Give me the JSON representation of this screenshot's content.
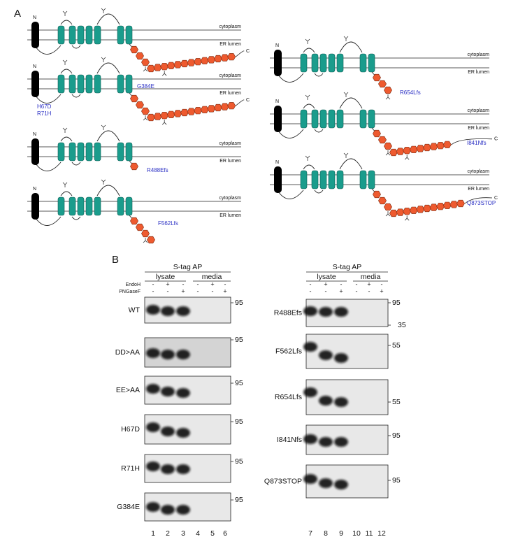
{
  "panel_a": {
    "label": "A",
    "diagrams": [
      {
        "n": "N",
        "cytoplasm": "cytoplasm",
        "er_lumen": "ER lumen",
        "c": "C"
      },
      {
        "n": "N",
        "cytoplasm": "cytoplasm",
        "er_lumen": "ER lumen",
        "c": "C",
        "mutations": [
          "G384E",
          "H67D",
          "R71H"
        ]
      },
      {
        "n": "N",
        "cytoplasm": "cytoplasm",
        "er_lumen": "ER lumen",
        "mutations": [
          "R488Efs"
        ]
      },
      {
        "n": "N",
        "cytoplasm": "cytoplasm",
        "er_lumen": "ER lumen",
        "mutations": [
          "F562Lfs"
        ]
      },
      {
        "n": "N",
        "cytoplasm": "cytoplasm",
        "er_lumen": "ER lumen",
        "mutations": [
          "R654Lfs"
        ]
      },
      {
        "n": "N",
        "cytoplasm": "cytoplasm",
        "er_lumen": "ER lumen",
        "c": "C",
        "mutations": [
          "I841Nfs"
        ]
      },
      {
        "n": "N",
        "cytoplasm": "cytoplasm",
        "er_lumen": "ER lumen",
        "c": "C",
        "mutations": [
          "Q873STOP"
        ]
      }
    ]
  },
  "panel_b": {
    "label": "B",
    "groups": [
      {
        "header": "S-tag AP",
        "lysate": "lysate",
        "media": "media",
        "treatments": [
          {
            "name": "EndoH",
            "signs": [
              "-",
              "+",
              "-",
              "-",
              "+",
              "-"
            ]
          },
          {
            "name": "PNGaseF",
            "signs": [
              "-",
              "-",
              "+",
              "-",
              "-",
              "+"
            ]
          }
        ],
        "blots": [
          {
            "label": "WT",
            "markers": [
              95
            ]
          },
          {
            "label": "DD>AA",
            "markers": [
              95
            ]
          },
          {
            "label": "EE>AA",
            "markers": [
              95
            ]
          },
          {
            "label": "H67D",
            "markers": [
              95
            ]
          },
          {
            "label": "R71H",
            "markers": [
              95
            ]
          },
          {
            "label": "G384E",
            "markers": [
              95
            ]
          }
        ],
        "lanes": [
          1,
          2,
          3,
          4,
          5,
          6
        ]
      },
      {
        "header": "S-tag AP",
        "lysate": "lysate",
        "media": "media",
        "treatments": [
          {
            "signs": [
              "-",
              "+",
              "-",
              "-",
              "+",
              "-"
            ]
          },
          {
            "signs": [
              "-",
              "-",
              "+",
              "-",
              "-",
              "+"
            ]
          }
        ],
        "blots": [
          {
            "label": "R488Efs",
            "markers": [
              95,
              35
            ]
          },
          {
            "label": "F562Lfs",
            "markers": [
              55
            ]
          },
          {
            "label": "R654Lfs",
            "markers": [
              55
            ]
          },
          {
            "label": "I841Nfs",
            "markers": [
              95
            ]
          },
          {
            "label": "Q873STOP",
            "markers": [
              95
            ]
          }
        ],
        "lanes": [
          7,
          8,
          9,
          10,
          11,
          12
        ]
      }
    ]
  }
}
